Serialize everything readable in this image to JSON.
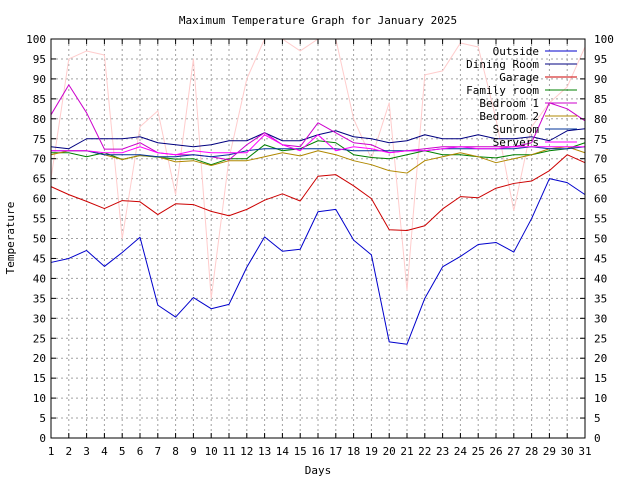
{
  "chart_data": {
    "type": "line",
    "title": "Maximum Temperature Graph for January 2025",
    "xlabel": "Days",
    "ylabel": "Temperature",
    "xlim": [
      1,
      31
    ],
    "ylim": [
      0,
      100
    ],
    "x_ticks": [
      1,
      2,
      3,
      4,
      5,
      6,
      7,
      8,
      9,
      10,
      11,
      12,
      13,
      14,
      15,
      16,
      17,
      18,
      19,
      20,
      21,
      22,
      23,
      24,
      25,
      26,
      27,
      28,
      29,
      30,
      31
    ],
    "y_ticks": [
      0,
      5,
      10,
      15,
      20,
      25,
      30,
      35,
      40,
      45,
      50,
      55,
      60,
      65,
      70,
      75,
      80,
      85,
      90,
      95,
      100
    ],
    "y_ticks_right": true,
    "grid": true,
    "legend_position": "top-right",
    "x": [
      1,
      2,
      3,
      4,
      5,
      6,
      7,
      8,
      9,
      10,
      11,
      12,
      13,
      14,
      15,
      16,
      17,
      18,
      19,
      20,
      21,
      22,
      23,
      24,
      25,
      26,
      27,
      28,
      29,
      30,
      31
    ],
    "series": [
      {
        "name": "Outside",
        "color": "#0000cc",
        "values": [
          44,
          45,
          47,
          43,
          46.5,
          50.3,
          33.3,
          30.3,
          35.2,
          32.4,
          33.5,
          42.8,
          50.4,
          46.8,
          47.3,
          56.7,
          57.3,
          49.6,
          45.9,
          24.1,
          23.5,
          35,
          42.9,
          45.5,
          48.5,
          49,
          46.6,
          55,
          65,
          64,
          61
        ]
      },
      {
        "name": "Dining Room",
        "color": "#000080",
        "values": [
          73,
          72.5,
          75,
          75,
          75,
          75.5,
          74,
          73.5,
          73,
          73.5,
          74.5,
          74.5,
          76.5,
          74.5,
          74.5,
          76,
          77,
          75.5,
          75,
          74,
          74.5,
          76,
          75,
          75,
          76,
          75,
          75,
          75.5,
          74.5,
          77,
          77.5
        ]
      },
      {
        "name": "Garage",
        "color": "#cc0000",
        "values": [
          63,
          61,
          59.3,
          57.5,
          59.5,
          59.2,
          56,
          58.7,
          58.5,
          56.8,
          55.7,
          57.3,
          59.6,
          61.2,
          59.4,
          65.6,
          66,
          63.2,
          60,
          52.2,
          52,
          53.2,
          57.4,
          60.5,
          60.2,
          62.6,
          63.8,
          64.4,
          67,
          71,
          69
        ]
      },
      {
        "name": "Family room",
        "color": "#008000",
        "values": [
          71.5,
          71.5,
          70.5,
          71.5,
          69.8,
          70.8,
          70.4,
          69.9,
          70,
          68.5,
          70,
          70,
          73.5,
          72,
          72.5,
          74.5,
          74,
          71,
          70.3,
          70,
          71,
          72,
          71,
          71,
          70.5,
          70.2,
          71,
          71,
          72,
          72.5,
          74
        ]
      },
      {
        "name": "Bedroom 1",
        "color": "#cc00cc",
        "values": [
          81,
          88.5,
          81.5,
          72.4,
          72.4,
          74,
          71.5,
          71,
          71,
          70.5,
          69.7,
          73.5,
          76.5,
          73.5,
          73,
          79,
          76.5,
          74,
          73.5,
          71.5,
          72,
          72.5,
          73,
          73,
          73,
          73,
          73,
          74,
          84,
          82.5,
          79.5
        ]
      },
      {
        "name": "Bedroom 2",
        "color": "#b08800",
        "values": [
          71,
          72,
          72,
          71,
          69.8,
          70.8,
          70.5,
          69.2,
          69.5,
          68.3,
          69.5,
          69.5,
          70.5,
          71.5,
          70.7,
          72,
          71,
          69.5,
          68.5,
          67,
          66.4,
          69.5,
          70.5,
          71.5,
          70.5,
          69,
          70,
          71,
          72.5,
          73,
          71.5
        ]
      },
      {
        "name": "Sunroom",
        "color": "#003399",
        "values": [
          72,
          72,
          72,
          71,
          71,
          71,
          70.5,
          70.5,
          71,
          70.5,
          71,
          72,
          72.5,
          72.5,
          72.5,
          72.5,
          72.5,
          72,
          72,
          72,
          72,
          72,
          72.5,
          72.5,
          72.5,
          72.5,
          72.5,
          73,
          72.5,
          72.5,
          73
        ]
      },
      {
        "name": "Servers",
        "color": "#ff00ff",
        "values": [
          72,
          72,
          72,
          71.5,
          71.5,
          73,
          71.5,
          71,
          72,
          71.5,
          71.5,
          71.5,
          76,
          73.5,
          72,
          76,
          72,
          73,
          72.5,
          71.5,
          72,
          72,
          72.5,
          73,
          72.5,
          72.5,
          73,
          73,
          73,
          73,
          73
        ]
      },
      {
        "name": "",
        "color": "#ffcccc",
        "values": [
          65,
          95,
          97,
          96,
          50,
          78,
          82,
          61,
          95,
          35,
          70,
          90,
          100,
          100,
          97,
          100,
          100,
          80,
          70,
          84,
          37,
          91,
          92,
          99,
          98,
          80,
          57,
          78,
          84,
          88,
          98
        ]
      }
    ]
  }
}
